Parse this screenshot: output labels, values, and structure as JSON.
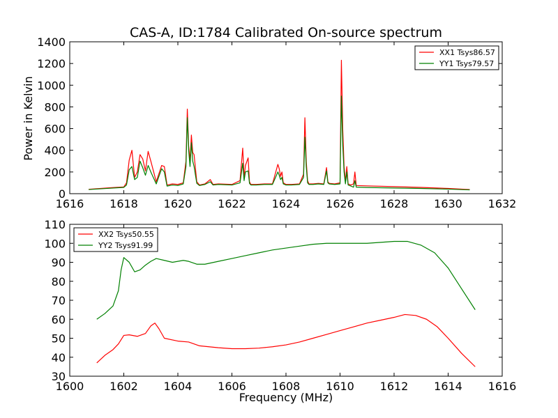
{
  "chart_data": [
    {
      "type": "line",
      "title": "CAS-A, ID:1784 Calibrated On-source spectrum",
      "xlabel": "",
      "ylabel": "Power in Kelvin",
      "xlim": [
        1616,
        1632
      ],
      "ylim": [
        0,
        1400
      ],
      "xticks": [
        1616,
        1618,
        1620,
        1622,
        1624,
        1626,
        1628,
        1630,
        1632
      ],
      "yticks": [
        0,
        200,
        400,
        600,
        800,
        1000,
        1200,
        1400
      ],
      "grid": false,
      "legend": "top-right",
      "series": [
        {
          "name": "XX1 Tsys86.57",
          "color": "#ff0000",
          "x": [
            1616.7,
            1617.5,
            1618.0,
            1618.1,
            1618.2,
            1618.3,
            1618.4,
            1618.5,
            1618.6,
            1618.7,
            1618.8,
            1618.9,
            1619.0,
            1619.2,
            1619.4,
            1619.5,
            1619.6,
            1619.8,
            1620.0,
            1620.2,
            1620.3,
            1620.35,
            1620.4,
            1620.45,
            1620.5,
            1620.55,
            1620.6,
            1620.7,
            1620.8,
            1621.0,
            1621.2,
            1621.3,
            1621.5,
            1622.0,
            1622.3,
            1622.4,
            1622.45,
            1622.5,
            1622.6,
            1622.65,
            1622.7,
            1622.9,
            1623.2,
            1623.5,
            1623.7,
            1623.75,
            1623.8,
            1623.85,
            1623.9,
            1624.0,
            1624.2,
            1624.5,
            1624.65,
            1624.7,
            1624.75,
            1624.8,
            1624.85,
            1625.0,
            1625.2,
            1625.4,
            1625.5,
            1625.55,
            1625.6,
            1625.8,
            1626.0,
            1626.05,
            1626.1,
            1626.15,
            1626.2,
            1626.25,
            1626.3,
            1626.4,
            1626.5,
            1626.55,
            1626.6,
            1627.0,
            1628.0,
            1629.0,
            1630.0,
            1630.8
          ],
          "y": [
            40,
            55,
            62,
            100,
            310,
            400,
            150,
            200,
            360,
            320,
            210,
            390,
            300,
            110,
            260,
            250,
            80,
            90,
            85,
            100,
            300,
            780,
            440,
            300,
            540,
            380,
            360,
            110,
            80,
            90,
            130,
            85,
            90,
            85,
            120,
            420,
            150,
            260,
            330,
            110,
            85,
            85,
            90,
            90,
            270,
            230,
            160,
            200,
            100,
            85,
            85,
            90,
            180,
            700,
            300,
            120,
            90,
            90,
            95,
            90,
            240,
            110,
            95,
            90,
            100,
            1230,
            600,
            250,
            110,
            250,
            90,
            80,
            90,
            200,
            75,
            72,
            65,
            58,
            48,
            38
          ]
        },
        {
          "name": "YY1 Tsys79.57",
          "color": "#008000",
          "x": [
            1616.7,
            1617.5,
            1618.0,
            1618.1,
            1618.2,
            1618.3,
            1618.4,
            1618.5,
            1618.6,
            1618.7,
            1618.8,
            1618.9,
            1619.0,
            1619.2,
            1619.4,
            1619.5,
            1619.6,
            1619.8,
            1620.0,
            1620.2,
            1620.3,
            1620.35,
            1620.4,
            1620.45,
            1620.5,
            1620.55,
            1620.6,
            1620.7,
            1620.8,
            1621.0,
            1621.2,
            1621.3,
            1621.5,
            1622.0,
            1622.3,
            1622.4,
            1622.45,
            1622.5,
            1622.6,
            1622.65,
            1622.7,
            1622.9,
            1623.2,
            1623.5,
            1623.7,
            1623.75,
            1623.8,
            1623.85,
            1623.9,
            1624.0,
            1624.2,
            1624.5,
            1624.65,
            1624.7,
            1624.75,
            1624.8,
            1624.85,
            1625.0,
            1625.2,
            1625.4,
            1625.5,
            1625.55,
            1625.6,
            1625.8,
            1626.0,
            1626.05,
            1626.1,
            1626.15,
            1626.2,
            1626.25,
            1626.3,
            1626.4,
            1626.5,
            1626.55,
            1626.6,
            1627.0,
            1628.0,
            1629.0,
            1630.0,
            1630.8
          ],
          "y": [
            38,
            50,
            58,
            80,
            220,
            250,
            130,
            150,
            300,
            240,
            170,
            260,
            200,
            90,
            230,
            200,
            70,
            80,
            75,
            90,
            250,
            700,
            400,
            250,
            470,
            300,
            250,
            95,
            75,
            85,
            110,
            80,
            85,
            80,
            100,
            280,
            120,
            200,
            210,
            95,
            80,
            80,
            85,
            85,
            200,
            170,
            130,
            150,
            90,
            80,
            80,
            85,
            150,
            520,
            250,
            100,
            85,
            85,
            90,
            85,
            210,
            100,
            90,
            85,
            90,
            900,
            450,
            200,
            90,
            200,
            80,
            70,
            60,
            120,
            60,
            57,
            52,
            48,
            42,
            35
          ]
        }
      ]
    },
    {
      "type": "line",
      "title": "",
      "xlabel": "Frequency (MHz)",
      "ylabel": "",
      "xlim": [
        1600,
        1616
      ],
      "ylim": [
        30,
        110
      ],
      "xticks": [
        1600,
        1602,
        1604,
        1606,
        1608,
        1610,
        1612,
        1614,
        1616
      ],
      "yticks": [
        30,
        40,
        50,
        60,
        70,
        80,
        90,
        100,
        110
      ],
      "grid": false,
      "legend": "top-left",
      "series": [
        {
          "name": "XX2 Tsys50.55",
          "color": "#ff0000",
          "x": [
            1601.0,
            1601.3,
            1601.6,
            1601.8,
            1602.0,
            1602.2,
            1602.5,
            1602.8,
            1603.0,
            1603.15,
            1603.3,
            1603.5,
            1604.0,
            1604.4,
            1604.8,
            1605.5,
            1606.0,
            1606.5,
            1607.0,
            1607.5,
            1608.0,
            1608.5,
            1609.0,
            1609.5,
            1610.0,
            1610.5,
            1611.0,
            1611.5,
            1612.0,
            1612.4,
            1612.8,
            1613.2,
            1613.6,
            1614.0,
            1614.5,
            1615.0
          ],
          "y": [
            37,
            41,
            44,
            47,
            51.5,
            51.8,
            51,
            52.5,
            56.5,
            58,
            55,
            50,
            48.5,
            48,
            46,
            45,
            44.5,
            44.5,
            44.8,
            45.5,
            46.5,
            48,
            50,
            52,
            54,
            56,
            58,
            59.5,
            61,
            62.5,
            62,
            60,
            56,
            50,
            42,
            35
          ]
        },
        {
          "name": "YY2 Tsys91.99",
          "color": "#008000",
          "x": [
            1601.0,
            1601.3,
            1601.6,
            1601.8,
            1601.9,
            1602.0,
            1602.2,
            1602.4,
            1602.6,
            1602.8,
            1603.0,
            1603.2,
            1603.5,
            1603.8,
            1604.0,
            1604.2,
            1604.4,
            1604.7,
            1605.0,
            1605.5,
            1606.0,
            1606.5,
            1607.0,
            1607.5,
            1608.0,
            1608.5,
            1609.0,
            1609.5,
            1610.0,
            1610.5,
            1611.0,
            1611.5,
            1612.0,
            1612.5,
            1613.0,
            1613.5,
            1614.0,
            1614.5,
            1615.0
          ],
          "y": [
            60,
            63,
            67,
            75,
            86,
            92.5,
            90,
            85,
            86,
            88.5,
            90.5,
            92,
            91,
            90,
            90.5,
            91,
            90.5,
            89,
            89,
            90.5,
            92,
            93.5,
            95,
            96.5,
            97.5,
            98.5,
            99.5,
            100,
            100,
            100,
            100,
            100.5,
            101,
            101,
            99,
            95,
            87,
            76,
            65
          ]
        }
      ]
    }
  ]
}
